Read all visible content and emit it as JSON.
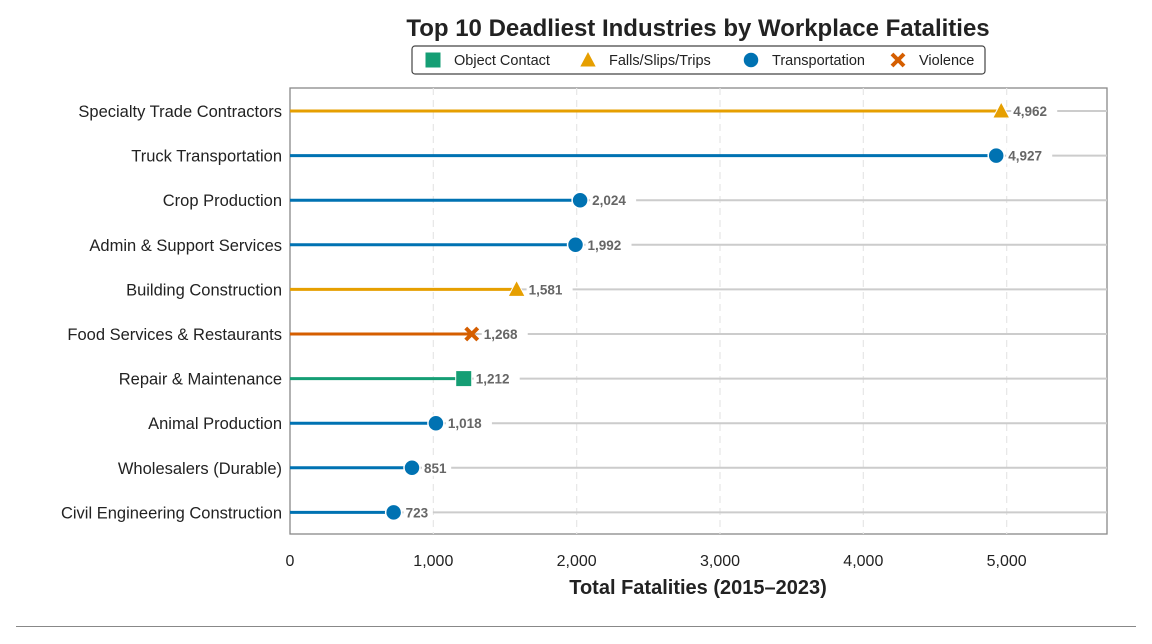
{
  "chart_data": {
    "type": "lollipop",
    "title": "Top 10 Deadliest Industries by Workplace Fatalities",
    "xlabel": "Total Fatalities (2015–2023)",
    "ylabel": "",
    "xlim": [
      0,
      5700
    ],
    "xticks": [
      0,
      1000,
      2000,
      3000,
      4000,
      5000
    ],
    "xtick_labels": [
      "0",
      "1,000",
      "2,000",
      "3,000",
      "4,000",
      "5,000"
    ],
    "grid": "vertical dashed",
    "legend": {
      "placement": "top-center",
      "entries": [
        {
          "label": "Object Contact",
          "marker": "square",
          "color": "#159e74"
        },
        {
          "label": "Falls/Slips/Trips",
          "marker": "triangle",
          "color": "#e69f00"
        },
        {
          "label": "Transportation",
          "marker": "circle",
          "color": "#0072b2"
        },
        {
          "label": "Violence",
          "marker": "x",
          "color": "#d55e00"
        }
      ]
    },
    "categories": [
      "Specialty Trade Contractors",
      "Truck Transportation",
      "Crop Production",
      "Admin & Support Services",
      "Building Construction",
      "Food Services & Restaurants",
      "Repair & Maintenance",
      "Animal Production",
      "Wholesalers (Durable)",
      "Civil Engineering Construction"
    ],
    "values": [
      4962,
      4927,
      2024,
      1992,
      1581,
      1268,
      1212,
      1018,
      851,
      723
    ],
    "value_labels": [
      "4,962",
      "4,927",
      "2,024",
      "1,992",
      "1,581",
      "1,268",
      "1,212",
      "1,018",
      "851",
      "723"
    ],
    "event_type": [
      "Falls/Slips/Trips",
      "Transportation",
      "Transportation",
      "Transportation",
      "Falls/Slips/Trips",
      "Violence",
      "Object Contact",
      "Transportation",
      "Transportation",
      "Transportation"
    ]
  }
}
